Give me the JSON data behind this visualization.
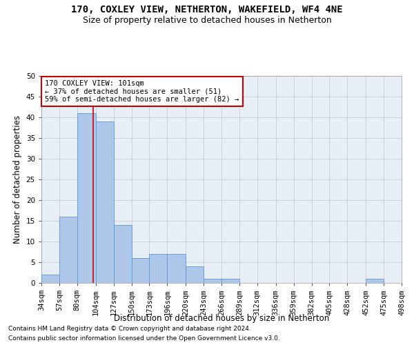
{
  "title1": "170, COXLEY VIEW, NETHERTON, WAKEFIELD, WF4 4NE",
  "title2": "Size of property relative to detached houses in Netherton",
  "xlabel": "Distribution of detached houses by size in Netherton",
  "ylabel": "Number of detached properties",
  "bar_values": [
    2,
    16,
    41,
    39,
    14,
    6,
    7,
    7,
    4,
    1,
    1,
    0,
    0,
    0,
    0,
    0,
    0,
    0,
    1,
    0
  ],
  "bin_labels": [
    "34sqm",
    "57sqm",
    "80sqm",
    "104sqm",
    "127sqm",
    "150sqm",
    "173sqm",
    "196sqm",
    "220sqm",
    "243sqm",
    "266sqm",
    "289sqm",
    "312sqm",
    "336sqm",
    "359sqm",
    "382sqm",
    "405sqm",
    "428sqm",
    "452sqm",
    "475sqm",
    "498sqm"
  ],
  "bin_edges": [
    34,
    57,
    80,
    104,
    127,
    150,
    173,
    196,
    220,
    243,
    266,
    289,
    312,
    336,
    359,
    382,
    405,
    428,
    452,
    475,
    498
  ],
  "bar_color": "#aec6e8",
  "bar_edge_color": "#5b9bd5",
  "vline_x": 101,
  "vline_color": "#cc0000",
  "ylim": [
    0,
    50
  ],
  "yticks": [
    0,
    5,
    10,
    15,
    20,
    25,
    30,
    35,
    40,
    45,
    50
  ],
  "annotation_title": "170 COXLEY VIEW: 101sqm",
  "annotation_line1": "← 37% of detached houses are smaller (51)",
  "annotation_line2": "59% of semi-detached houses are larger (82) →",
  "annotation_box_color": "#ffffff",
  "annotation_box_edge_color": "#cc0000",
  "footnote1": "Contains HM Land Registry data © Crown copyright and database right 2024.",
  "footnote2": "Contains public sector information licensed under the Open Government Licence v3.0.",
  "bg_color": "#ffffff",
  "plot_bg_color": "#e8eef5",
  "grid_color": "#c8cdd4",
  "title1_fontsize": 10,
  "title2_fontsize": 9,
  "xlabel_fontsize": 8.5,
  "ylabel_fontsize": 8.5,
  "tick_fontsize": 7.5,
  "annotation_fontsize": 7.5,
  "footnote_fontsize": 6.5
}
